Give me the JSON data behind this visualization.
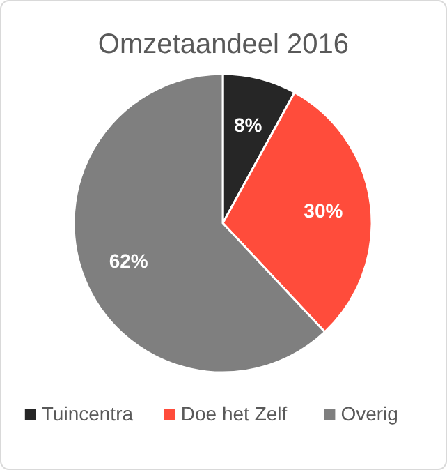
{
  "chart_data": {
    "type": "pie",
    "title": "Omzetaandeel 2016",
    "categories": [
      "Tuincentra",
      "Doe het Zelf",
      "Overig"
    ],
    "values": [
      8,
      30,
      62
    ],
    "colors": [
      "#262626",
      "#ff4c3b",
      "#7f7f7f"
    ],
    "value_labels": [
      "8%",
      "30%",
      "62%"
    ],
    "legend": "bottom"
  }
}
